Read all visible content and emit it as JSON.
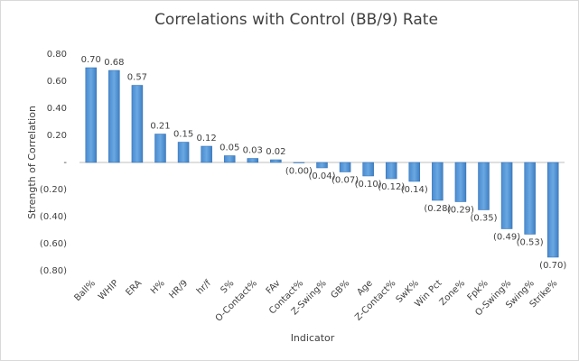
{
  "chart_data": {
    "type": "bar",
    "title": "Correlations with Control (BB/9) Rate",
    "x_label": "Indicator",
    "y_label": "Strength of Correlation",
    "categories": [
      "Ball%",
      "WHIP",
      "ERA",
      "H%",
      "HR/9",
      "hr/f",
      "S%",
      "O-Contact%",
      "FAv",
      "Contact%",
      "Z-Swing%",
      "GB%",
      "Age",
      "Z-Contact%",
      "SwK%",
      "Win Pct",
      "Zone%",
      "Fpk%",
      "O-Swing%",
      "Swing%",
      "Strike%"
    ],
    "values": [
      0.7,
      0.68,
      0.57,
      0.21,
      0.15,
      0.12,
      0.05,
      0.03,
      0.02,
      -0.003,
      -0.04,
      -0.07,
      -0.1,
      -0.12,
      -0.14,
      -0.28,
      -0.29,
      -0.35,
      -0.49,
      -0.53,
      -0.7
    ],
    "value_labels": [
      "0.70",
      "0.68",
      "0.57",
      "0.21",
      "0.15",
      "0.12",
      "0.05",
      "0.03",
      "0.02",
      "(0.00)",
      "(0.04)",
      "(0.07)",
      "(0.10)",
      "(0.12)",
      "(0.14)",
      "(0.28)",
      "(0.29)",
      "(0.35)",
      "(0.49)",
      "(0.53)",
      "(0.70)"
    ],
    "color": "#5b9bd5",
    "ylim": [
      -0.8,
      0.8
    ],
    "yticks": [
      {
        "value": 0.8,
        "label": "0.80"
      },
      {
        "value": 0.6,
        "label": "0.60"
      },
      {
        "value": 0.4,
        "label": "0.40"
      },
      {
        "value": 0.2,
        "label": "0.20"
      },
      {
        "value": 0,
        "label": "-"
      },
      {
        "value": -0.2,
        "label": "(0.20)"
      },
      {
        "value": -0.4,
        "label": "(0.40)"
      },
      {
        "value": -0.6,
        "label": "(0.60)"
      },
      {
        "value": -0.8,
        "label": "(0.80)"
      }
    ],
    "grid": false
  }
}
